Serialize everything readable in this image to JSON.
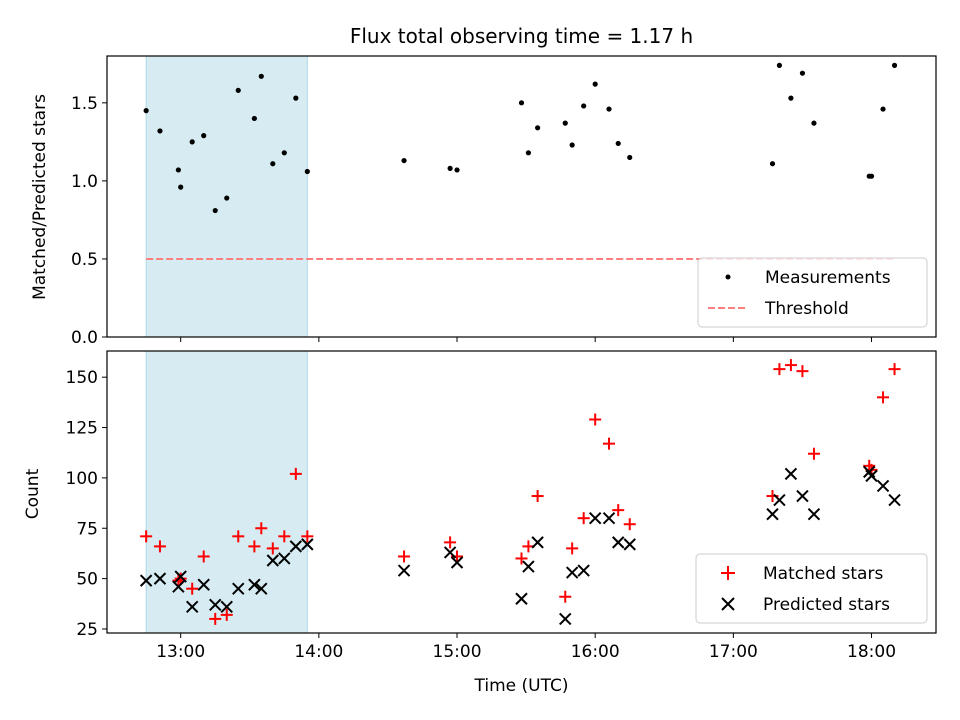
{
  "chart_data": {
    "title": "Flux total observing time = 1.17 h",
    "xlabel": "Time (UTC)",
    "x_ticks": [
      "13:00",
      "14:00",
      "15:00",
      "16:00",
      "17:00",
      "18:00"
    ],
    "x_range": [
      "12:28",
      "18:28"
    ],
    "shaded_interval": [
      "12:45",
      "13:55"
    ],
    "colors": {
      "shade": "#add8e6",
      "measurements": "#000000",
      "threshold": "#ff7f7f",
      "matched": "#ff0000",
      "predicted": "#000000"
    },
    "panels": [
      {
        "type": "scatter",
        "ylabel": "Matched/Predicted stars",
        "ylim": [
          0.0,
          1.8
        ],
        "y_ticks": [
          "0.0",
          "0.5",
          "1.0",
          "1.5"
        ],
        "legend_placement": "lower-right",
        "series": [
          {
            "name": "Measurements",
            "marker": "dot",
            "points": [
              [
                "12:45",
                1.45
              ],
              [
                "12:51",
                1.32
              ],
              [
                "12:59",
                1.07
              ],
              [
                "13:00",
                0.96
              ],
              [
                "13:05",
                1.25
              ],
              [
                "13:10",
                1.29
              ],
              [
                "13:15",
                0.81
              ],
              [
                "13:20",
                0.89
              ],
              [
                "13:25",
                1.58
              ],
              [
                "13:32",
                1.4
              ],
              [
                "13:35",
                1.67
              ],
              [
                "13:40",
                1.11
              ],
              [
                "13:45",
                1.18
              ],
              [
                "13:50",
                1.53
              ],
              [
                "13:55",
                1.06
              ],
              [
                "14:37",
                1.13
              ],
              [
                "14:57",
                1.08
              ],
              [
                "15:00",
                1.07
              ],
              [
                "15:28",
                1.5
              ],
              [
                "15:31",
                1.18
              ],
              [
                "15:35",
                1.34
              ],
              [
                "15:47",
                1.37
              ],
              [
                "15:50",
                1.23
              ],
              [
                "15:55",
                1.48
              ],
              [
                "16:00",
                1.62
              ],
              [
                "16:06",
                1.46
              ],
              [
                "16:10",
                1.24
              ],
              [
                "16:15",
                1.15
              ],
              [
                "17:17",
                1.11
              ],
              [
                "17:20",
                1.74
              ],
              [
                "17:25",
                1.53
              ],
              [
                "17:30",
                1.69
              ],
              [
                "17:35",
                1.37
              ],
              [
                "17:59",
                1.03
              ],
              [
                "18:00",
                1.03
              ],
              [
                "18:05",
                1.46
              ],
              [
                "18:10",
                1.74
              ]
            ]
          },
          {
            "name": "Threshold",
            "type": "line",
            "style": "dashed",
            "points": [
              [
                "12:45",
                0.5
              ],
              [
                "18:10",
                0.5
              ]
            ]
          }
        ]
      },
      {
        "type": "scatter",
        "ylabel": "Count",
        "ylim": [
          23,
          163
        ],
        "y_ticks": [
          "25",
          "50",
          "75",
          "100",
          "125",
          "150"
        ],
        "legend_placement": "lower-right",
        "series": [
          {
            "name": "Matched stars",
            "marker": "plus",
            "points": [
              [
                "12:45",
                71
              ],
              [
                "12:51",
                66
              ],
              [
                "12:59",
                49
              ],
              [
                "13:00",
                50
              ],
              [
                "13:05",
                45
              ],
              [
                "13:10",
                61
              ],
              [
                "13:15",
                30
              ],
              [
                "13:20",
                32
              ],
              [
                "13:25",
                71
              ],
              [
                "13:32",
                66
              ],
              [
                "13:35",
                75
              ],
              [
                "13:40",
                65
              ],
              [
                "13:45",
                71
              ],
              [
                "13:50",
                102
              ],
              [
                "13:55",
                71
              ],
              [
                "14:37",
                61
              ],
              [
                "14:57",
                68
              ],
              [
                "15:00",
                61
              ],
              [
                "15:28",
                60
              ],
              [
                "15:31",
                66
              ],
              [
                "15:35",
                91
              ],
              [
                "15:47",
                41
              ],
              [
                "15:50",
                65
              ],
              [
                "15:55",
                80
              ],
              [
                "16:00",
                129
              ],
              [
                "16:06",
                117
              ],
              [
                "16:10",
                84
              ],
              [
                "16:15",
                77
              ],
              [
                "17:17",
                91
              ],
              [
                "17:20",
                154
              ],
              [
                "17:25",
                156
              ],
              [
                "17:30",
                153
              ],
              [
                "17:35",
                112
              ],
              [
                "17:59",
                106
              ],
              [
                "18:00",
                104
              ],
              [
                "18:05",
                140
              ],
              [
                "18:10",
                154
              ]
            ]
          },
          {
            "name": "Predicted stars",
            "marker": "x",
            "points": [
              [
                "12:45",
                49
              ],
              [
                "12:51",
                50
              ],
              [
                "12:59",
                46
              ],
              [
                "13:00",
                51
              ],
              [
                "13:05",
                36
              ],
              [
                "13:10",
                47
              ],
              [
                "13:15",
                37
              ],
              [
                "13:20",
                36
              ],
              [
                "13:25",
                45
              ],
              [
                "13:32",
                47
              ],
              [
                "13:35",
                45
              ],
              [
                "13:40",
                59
              ],
              [
                "13:45",
                60
              ],
              [
                "13:50",
                66
              ],
              [
                "13:55",
                67
              ],
              [
                "14:37",
                54
              ],
              [
                "14:57",
                63
              ],
              [
                "15:00",
                58
              ],
              [
                "15:28",
                40
              ],
              [
                "15:31",
                56
              ],
              [
                "15:35",
                68
              ],
              [
                "15:47",
                30
              ],
              [
                "15:50",
                53
              ],
              [
                "15:55",
                54
              ],
              [
                "16:00",
                80
              ],
              [
                "16:06",
                80
              ],
              [
                "16:10",
                68
              ],
              [
                "16:15",
                67
              ],
              [
                "17:17",
                82
              ],
              [
                "17:20",
                89
              ],
              [
                "17:25",
                102
              ],
              [
                "17:30",
                91
              ],
              [
                "17:35",
                82
              ],
              [
                "17:59",
                103
              ],
              [
                "18:00",
                101
              ],
              [
                "18:05",
                96
              ],
              [
                "18:10",
                89
              ]
            ]
          }
        ]
      }
    ]
  }
}
